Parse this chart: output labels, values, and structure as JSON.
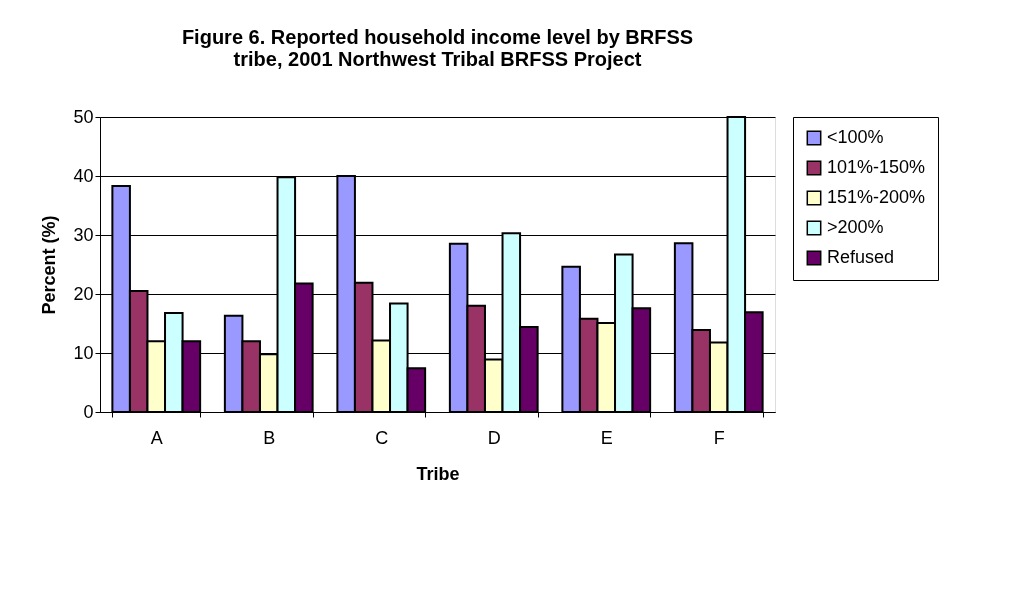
{
  "chart_data": {
    "type": "bar",
    "title": [
      "Figure 6.  Reported household income level by BRFSS",
      "tribe, 2001 Northwest Tribal BRFSS Project"
    ],
    "xlabel": "Tribe",
    "ylabel": "Percent (%)",
    "categories": [
      "A",
      "B",
      "C",
      "D",
      "E",
      "F"
    ],
    "series": [
      {
        "name": "<100%",
        "color": "#9999ff",
        "values": [
          38.3,
          16.3,
          40,
          28.5,
          24.6,
          28.6
        ]
      },
      {
        "name": "101%-150%",
        "color": "#993366",
        "values": [
          20.5,
          12,
          21.9,
          18,
          15.8,
          13.9
        ]
      },
      {
        "name": "151%-200%",
        "color": "#ffffcc",
        "values": [
          12,
          9.8,
          12.1,
          8.9,
          15.1,
          11.8
        ]
      },
      {
        "name": ">200%",
        "color": "#ccffff",
        "values": [
          16.8,
          39.8,
          18.4,
          30.3,
          26.7,
          50
        ]
      },
      {
        "name": "Refused",
        "color": "#660066",
        "values": [
          12,
          21.8,
          7.4,
          14.4,
          17.6,
          16.9
        ]
      }
    ],
    "ylim": [
      0,
      50
    ],
    "yticks": [
      0,
      10,
      20,
      30,
      40,
      50
    ],
    "grid": "y",
    "legend": "right"
  }
}
